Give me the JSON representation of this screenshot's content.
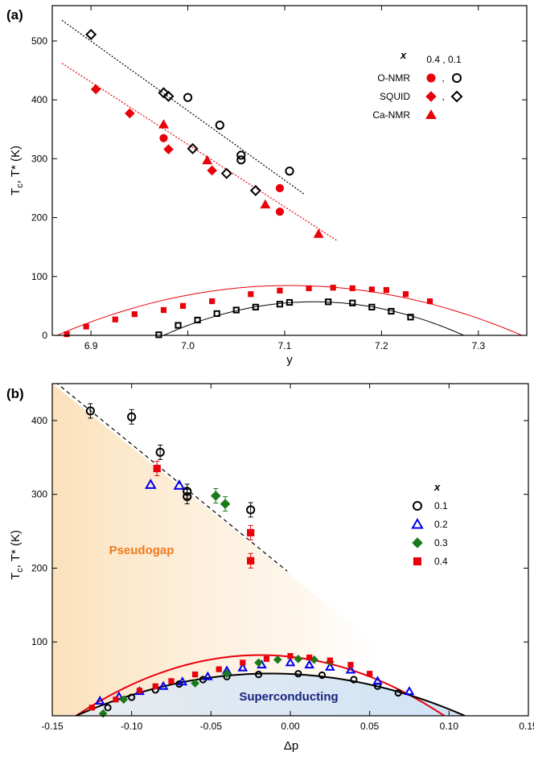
{
  "colors": {
    "x04": "#e8000b",
    "x01": "#000000",
    "x02": "#0000ee",
    "x03": "#1a7a1a",
    "pseudogap_text": "#f07a1e",
    "superconducting_text": "#1a237e",
    "pseudogap_fill": "#fbe3bf",
    "superconducting_fill": "#cfe3f7"
  },
  "chart_data": [
    {
      "panel": "(a)",
      "type": "scatter",
      "xlabel": "y",
      "ylabel_main": "T",
      "ylabel_sub": "c",
      "ylabel_rest": ", T* (K)",
      "xlim": [
        6.86,
        7.35
      ],
      "ylim": [
        0,
        560
      ],
      "xticks": [
        6.9,
        7.0,
        7.1,
        7.2,
        7.3
      ],
      "xtick_labels": [
        "6.9",
        "7.0",
        "7.1",
        "7.2",
        "7.3"
      ],
      "yticks": [
        0,
        100,
        200,
        300,
        400,
        500
      ],
      "ytick_labels": [
        "0",
        "100",
        "200",
        "300",
        "400",
        "500"
      ],
      "legend": {
        "header_var": "x",
        "header_vals": "0.4 ,  0.1",
        "separator": ",",
        "rows": [
          {
            "label": "O-NMR",
            "marker": "circle",
            "has_x01": true
          },
          {
            "label": "SQUID",
            "marker": "diamond",
            "has_x01": true
          },
          {
            "label": "Ca-NMR",
            "marker": "triangle",
            "has_x01": false
          }
        ]
      },
      "series": [
        {
          "name": "O-NMR",
          "x_value": "0.4",
          "marker": "circle",
          "filled": true,
          "color": "#e8000b",
          "points": [
            [
              6.975,
              335
            ],
            [
              7.095,
              250
            ],
            [
              7.095,
              210
            ]
          ]
        },
        {
          "name": "O-NMR",
          "x_value": "0.1",
          "marker": "circle",
          "filled": false,
          "color": "#000000",
          "points": [
            [
              7.0,
              404
            ],
            [
              7.033,
              357
            ],
            [
              7.055,
              306
            ],
            [
              7.055,
              298
            ],
            [
              7.105,
              279
            ]
          ]
        },
        {
          "name": "SQUID",
          "x_value": "0.4",
          "marker": "diamond",
          "filled": true,
          "color": "#e8000b",
          "points": [
            [
              6.905,
              418
            ],
            [
              6.94,
              377
            ],
            [
              6.98,
              316
            ],
            [
              7.025,
              280
            ]
          ]
        },
        {
          "name": "SQUID",
          "x_value": "0.1",
          "marker": "diamond",
          "filled": false,
          "color": "#000000",
          "points": [
            [
              6.9,
              511
            ],
            [
              6.975,
              412
            ],
            [
              6.98,
              406
            ],
            [
              7.005,
              317
            ],
            [
              7.04,
              275
            ],
            [
              7.07,
              246
            ]
          ]
        },
        {
          "name": "Ca-NMR",
          "x_value": "0.4",
          "marker": "triangle",
          "filled": true,
          "color": "#e8000b",
          "points": [
            [
              6.975,
              358
            ],
            [
              7.02,
              297
            ],
            [
              7.08,
              222
            ],
            [
              7.135,
              172
            ]
          ]
        },
        {
          "name": "Tc",
          "x_value": "0.4",
          "marker": "square",
          "filled": true,
          "color": "#e8000b",
          "points": [
            [
              6.875,
              2
            ],
            [
              6.895,
              15
            ],
            [
              6.925,
              27
            ],
            [
              6.945,
              36
            ],
            [
              6.975,
              43
            ],
            [
              6.995,
              50
            ],
            [
              7.025,
              58
            ],
            [
              7.065,
              70
            ],
            [
              7.095,
              76
            ],
            [
              7.125,
              80
            ],
            [
              7.15,
              81
            ],
            [
              7.17,
              80
            ],
            [
              7.19,
              78
            ],
            [
              7.205,
              77
            ],
            [
              7.225,
              70
            ],
            [
              7.25,
              58
            ]
          ]
        },
        {
          "name": "Tc",
          "x_value": "0.1",
          "marker": "square",
          "filled": false,
          "color": "#000000",
          "points": [
            [
              6.97,
              1
            ],
            [
              6.99,
              17
            ],
            [
              7.01,
              26
            ],
            [
              7.03,
              37
            ],
            [
              7.05,
              43
            ],
            [
              7.07,
              48
            ],
            [
              7.095,
              53
            ],
            [
              7.105,
              56
            ],
            [
              7.145,
              57
            ],
            [
              7.17,
              55
            ],
            [
              7.19,
              48
            ],
            [
              7.21,
              41
            ],
            [
              7.23,
              31
            ]
          ]
        }
      ],
      "lines": [
        {
          "style": "dotted",
          "color": "#000000",
          "from": [
            6.87,
            535
          ],
          "to": [
            7.12,
            240
          ]
        },
        {
          "style": "dotted",
          "color": "#e8000b",
          "from": [
            6.87,
            462
          ],
          "to": [
            7.155,
            160
          ]
        },
        {
          "style": "solid",
          "kind": "parabola",
          "color": "#e8000b",
          "peak": [
            7.155,
            81
          ],
          "zeros": [
            6.865,
            7.345
          ]
        },
        {
          "style": "solid",
          "kind": "parabola",
          "color": "#000000",
          "peak": [
            7.13,
            57
          ],
          "zeros": [
            6.975,
            7.285
          ]
        }
      ]
    },
    {
      "panel": "(b)",
      "type": "scatter",
      "xlabel": "Δp",
      "ylabel_main": "T",
      "ylabel_sub": "c",
      "ylabel_rest": ", T* (K)",
      "xlim": [
        -0.15,
        0.15
      ],
      "ylim": [
        0,
        450
      ],
      "xticks": [
        -0.15,
        -0.1,
        -0.05,
        0.0,
        0.05,
        0.1,
        0.15
      ],
      "xtick_labels": [
        "-0.15",
        "-0.10",
        "-0.05",
        "0.00",
        "0.05",
        "0.10",
        "0.15"
      ],
      "yticks": [
        100,
        200,
        300,
        400
      ],
      "ytick_labels": [
        "100",
        "200",
        "300",
        "400"
      ],
      "regions": {
        "pseudogap": "Pseudogap",
        "superconducting": "Superconducting"
      },
      "legend": {
        "header_var": "x",
        "rows": [
          {
            "label": "0.1",
            "marker": "circle",
            "color": "#000000",
            "filled": false
          },
          {
            "label": "0.2",
            "marker": "triangle",
            "color": "#0000ee",
            "filled": false
          },
          {
            "label": "0.3",
            "marker": "diamond",
            "color": "#1a7a1a",
            "filled": true
          },
          {
            "label": "0.4",
            "marker": "square",
            "color": "#e8000b",
            "filled": true
          }
        ]
      },
      "series": [
        {
          "name": "0.1",
          "kind": "Tstar",
          "marker": "circle",
          "filled": false,
          "color": "#000000",
          "errorbars": true,
          "points": [
            [
              -0.126,
              413
            ],
            [
              -0.1,
              405
            ],
            [
              -0.082,
              357
            ],
            [
              -0.065,
              304
            ],
            [
              -0.065,
              297
            ],
            [
              -0.025,
              279
            ]
          ]
        },
        {
          "name": "0.2",
          "kind": "Tstar",
          "marker": "triangle",
          "filled": false,
          "color": "#0000ee",
          "errorbars": false,
          "points": [
            [
              -0.088,
              313
            ],
            [
              -0.07,
              312
            ]
          ]
        },
        {
          "name": "0.3",
          "kind": "Tstar",
          "marker": "diamond",
          "filled": true,
          "color": "#1a7a1a",
          "errorbars": true,
          "points": [
            [
              -0.047,
              298
            ],
            [
              -0.041,
              287
            ]
          ]
        },
        {
          "name": "0.4",
          "kind": "Tstar",
          "marker": "square",
          "filled": true,
          "color": "#e8000b",
          "errorbars": true,
          "points": [
            [
              -0.084,
              335
            ],
            [
              -0.025,
              248
            ],
            [
              -0.025,
              210
            ]
          ]
        },
        {
          "name": "0.1",
          "kind": "Tc",
          "marker": "circle",
          "filled": false,
          "color": "#000000",
          "errorbars": false,
          "points": [
            [
              -0.115,
              11
            ],
            [
              -0.1,
              25
            ],
            [
              -0.085,
              35
            ],
            [
              -0.07,
              43
            ],
            [
              -0.055,
              49
            ],
            [
              -0.04,
              53
            ],
            [
              -0.02,
              56
            ],
            [
              0.005,
              57
            ],
            [
              0.02,
              55
            ],
            [
              0.04,
              49
            ],
            [
              0.055,
              40
            ],
            [
              0.068,
              31
            ]
          ]
        },
        {
          "name": "0.2",
          "kind": "Tc",
          "marker": "triangle",
          "filled": false,
          "color": "#0000ee",
          "errorbars": false,
          "points": [
            [
              -0.12,
              20
            ],
            [
              -0.108,
              26
            ],
            [
              -0.095,
              33
            ],
            [
              -0.08,
              40
            ],
            [
              -0.068,
              46
            ],
            [
              -0.052,
              53
            ],
            [
              -0.04,
              61
            ],
            [
              -0.03,
              65
            ],
            [
              -0.018,
              69
            ],
            [
              0.0,
              72
            ],
            [
              0.012,
              69
            ],
            [
              0.025,
              66
            ],
            [
              0.038,
              62
            ],
            [
              0.055,
              47
            ],
            [
              0.075,
              33
            ]
          ]
        },
        {
          "name": "0.3",
          "kind": "Tc",
          "marker": "diamond",
          "filled": true,
          "color": "#1a7a1a",
          "errorbars": false,
          "points": [
            [
              -0.118,
              3
            ],
            [
              -0.105,
              22
            ],
            [
              -0.06,
              44
            ],
            [
              -0.04,
              57
            ],
            [
              -0.02,
              72
            ],
            [
              -0.008,
              76
            ],
            [
              0.005,
              77
            ],
            [
              0.015,
              76
            ],
            [
              0.025,
              73
            ]
          ]
        },
        {
          "name": "0.4",
          "kind": "Tc",
          "marker": "square",
          "filled": true,
          "color": "#e8000b",
          "errorbars": false,
          "points": [
            [
              -0.125,
              11
            ],
            [
              -0.11,
              22
            ],
            [
              -0.095,
              34
            ],
            [
              -0.085,
              40
            ],
            [
              -0.075,
              47
            ],
            [
              -0.06,
              56
            ],
            [
              -0.045,
              63
            ],
            [
              -0.03,
              72
            ],
            [
              -0.015,
              77
            ],
            [
              0.0,
              81
            ],
            [
              0.012,
              79
            ],
            [
              0.025,
              75
            ],
            [
              0.038,
              69
            ],
            [
              0.05,
              57
            ]
          ]
        }
      ],
      "lines": [
        {
          "style": "dashed",
          "color": "#000000",
          "from": [
            -0.148,
            452
          ],
          "to": [
            -0.002,
            196
          ]
        },
        {
          "style": "solid",
          "kind": "parabola",
          "color": "#e8000b",
          "peak": [
            -0.005,
            81
          ],
          "zeros": [
            -0.135,
            0.097
          ]
        },
        {
          "style": "solid",
          "kind": "parabola",
          "color": "#000000",
          "peak": [
            -0.005,
            57
          ],
          "zeros": [
            -0.135,
            0.11
          ]
        }
      ]
    }
  ]
}
